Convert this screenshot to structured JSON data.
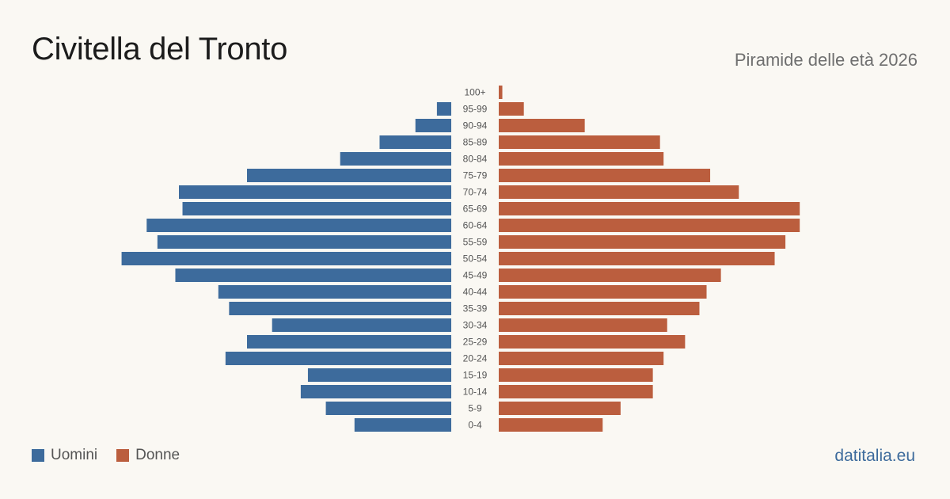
{
  "header": {
    "title": "Civitella del Tronto",
    "subtitle": "Piramide delle età 2026"
  },
  "legend": {
    "men_label": "Uomini",
    "women_label": "Donne"
  },
  "brand": {
    "text": "datitalia.eu"
  },
  "colors": {
    "men": "#3d6b9c",
    "women": "#bb5e3e",
    "background": "#faf8f3",
    "brand": "#3d6b9c"
  },
  "chart_data": {
    "type": "bar",
    "orientation": "horizontal-pyramid",
    "categories": [
      "100+",
      "95-99",
      "90-94",
      "85-89",
      "80-84",
      "75-79",
      "70-74",
      "65-69",
      "60-64",
      "55-59",
      "50-54",
      "45-49",
      "40-44",
      "35-39",
      "30-34",
      "25-29",
      "20-24",
      "15-19",
      "10-14",
      "5-9",
      "0-4"
    ],
    "series": [
      {
        "name": "Uomini",
        "values": [
          0,
          4,
          10,
          20,
          31,
          57,
          76,
          75,
          85,
          82,
          92,
          77,
          65,
          62,
          50,
          57,
          63,
          40,
          42,
          35,
          27
        ]
      },
      {
        "name": "Donne",
        "values": [
          1,
          7,
          24,
          45,
          46,
          59,
          67,
          84,
          84,
          80,
          77,
          62,
          58,
          56,
          47,
          52,
          46,
          43,
          43,
          34,
          29
        ]
      }
    ],
    "xlim": [
      0,
      95
    ],
    "grid": false,
    "legend_position": "bottom-left"
  }
}
